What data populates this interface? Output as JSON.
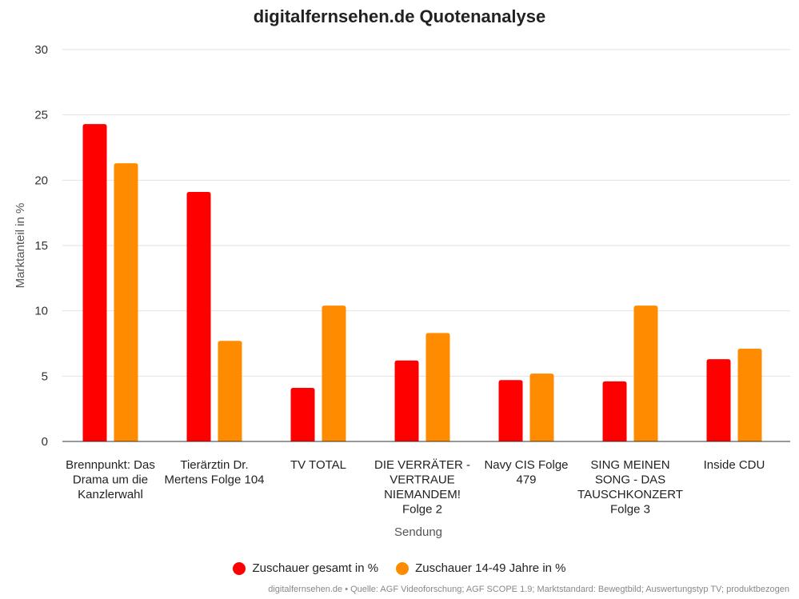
{
  "chart_data": {
    "type": "bar",
    "title": "digitalfernsehen.de Quotenanalyse",
    "xlabel": "Sendung",
    "ylabel": "Marktanteil in %",
    "ylim": [
      0,
      30
    ],
    "yticks": [
      "0",
      "5",
      "10",
      "15",
      "20",
      "25",
      "30"
    ],
    "grid": true,
    "legend_position": "bottom",
    "categories": [
      [
        "Brennpunkt: Das",
        "Drama um die",
        "Kanzlerwahl"
      ],
      [
        "Tierärztin Dr.",
        "Mertens Folge 104"
      ],
      [
        "TV TOTAL"
      ],
      [
        "DIE VERRÄTER -",
        "VERTRAUE",
        "NIEMANDEM!",
        "Folge 2"
      ],
      [
        "Navy CIS Folge",
        "479"
      ],
      [
        "SING MEINEN",
        "SONG - DAS",
        "TAUSCHKONZERT",
        "Folge 3"
      ],
      [
        "Inside CDU"
      ]
    ],
    "series": [
      {
        "name": "Zuschauer gesamt in %",
        "color": "#ff0000",
        "values": [
          24.3,
          19.1,
          4.1,
          6.2,
          4.7,
          4.6,
          6.3
        ]
      },
      {
        "name": "Zuschauer 14-49 Jahre in %",
        "color": "#ff8c00",
        "values": [
          21.3,
          7.7,
          10.4,
          8.3,
          5.2,
          10.4,
          7.1
        ]
      }
    ]
  },
  "source": "digitalfernsehen.de • Quelle: AGF Videoforschung; AGF SCOPE 1.9; Marktstandard: Bewegtbild; Auswertungstyp TV; produktbezogen"
}
